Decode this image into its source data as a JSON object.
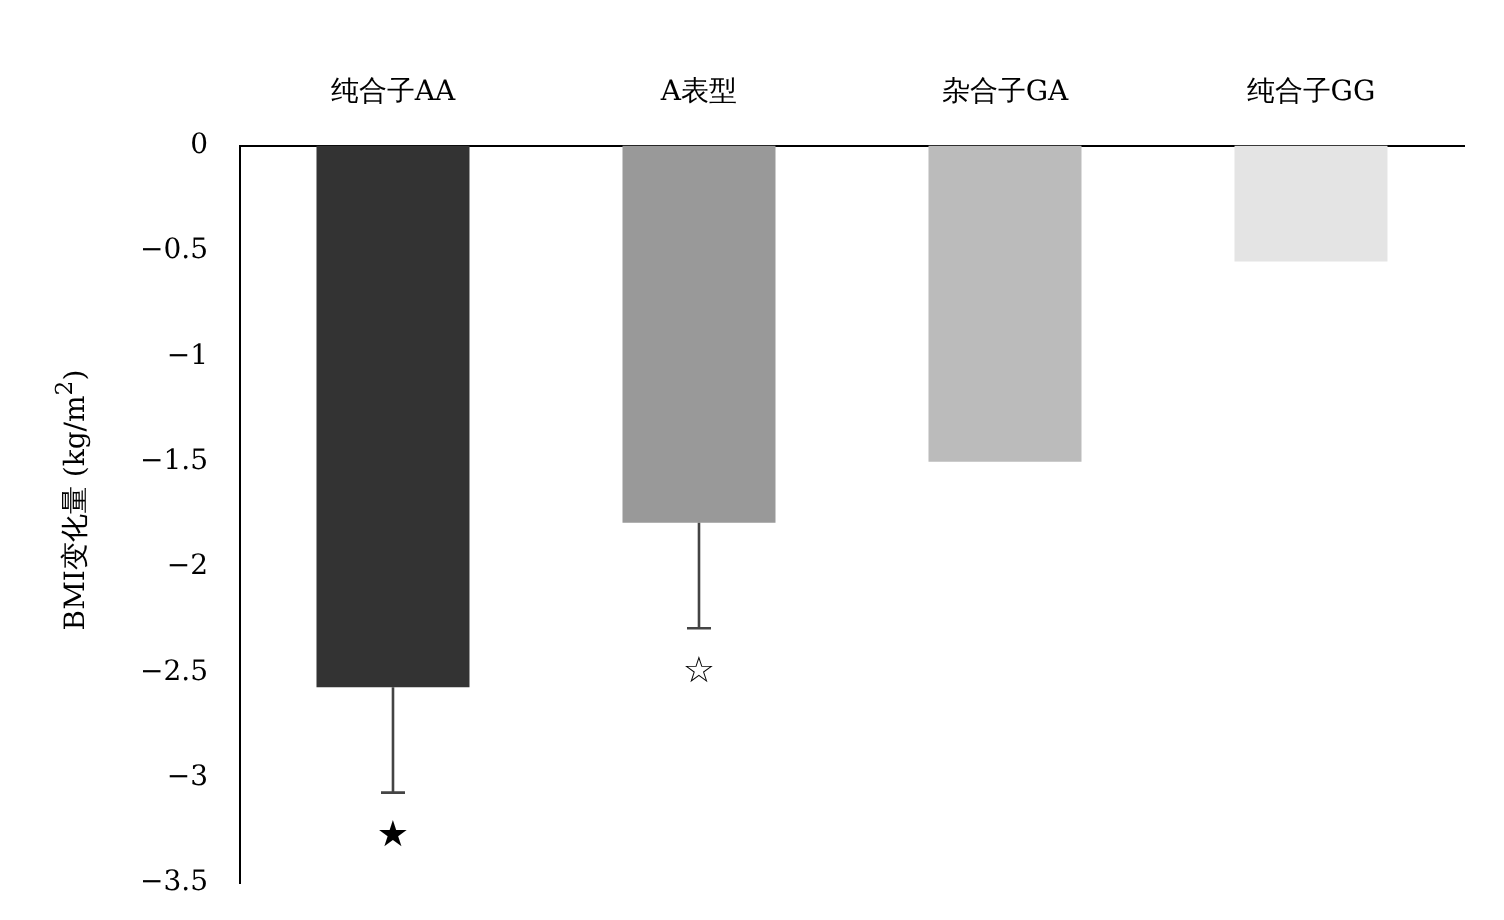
{
  "chart_data": {
    "type": "bar",
    "ylabel": "BMI变化量 (kg/m$^{2}$)",
    "categories": [
      "纯合子AA",
      "A表型",
      "杂合子GA",
      "纯合子GG"
    ],
    "values": [
      -2.57,
      -1.79,
      -1.5,
      -0.55
    ],
    "colors": [
      "#333333",
      "#999999",
      "#bbbbbb",
      "#e4e4e4"
    ],
    "errors": [
      [
        -3.07,
        -2.57
      ],
      [
        -2.29,
        -1.79
      ],
      null,
      null
    ],
    "ylim": [
      -3.5,
      0
    ],
    "yticks": [
      0,
      -0.5,
      -1,
      -1.5,
      -2,
      -2.5,
      -3,
      -3.5
    ],
    "grid": false,
    "legend": false,
    "annotations": [
      "★",
      "☆"
    ]
  }
}
